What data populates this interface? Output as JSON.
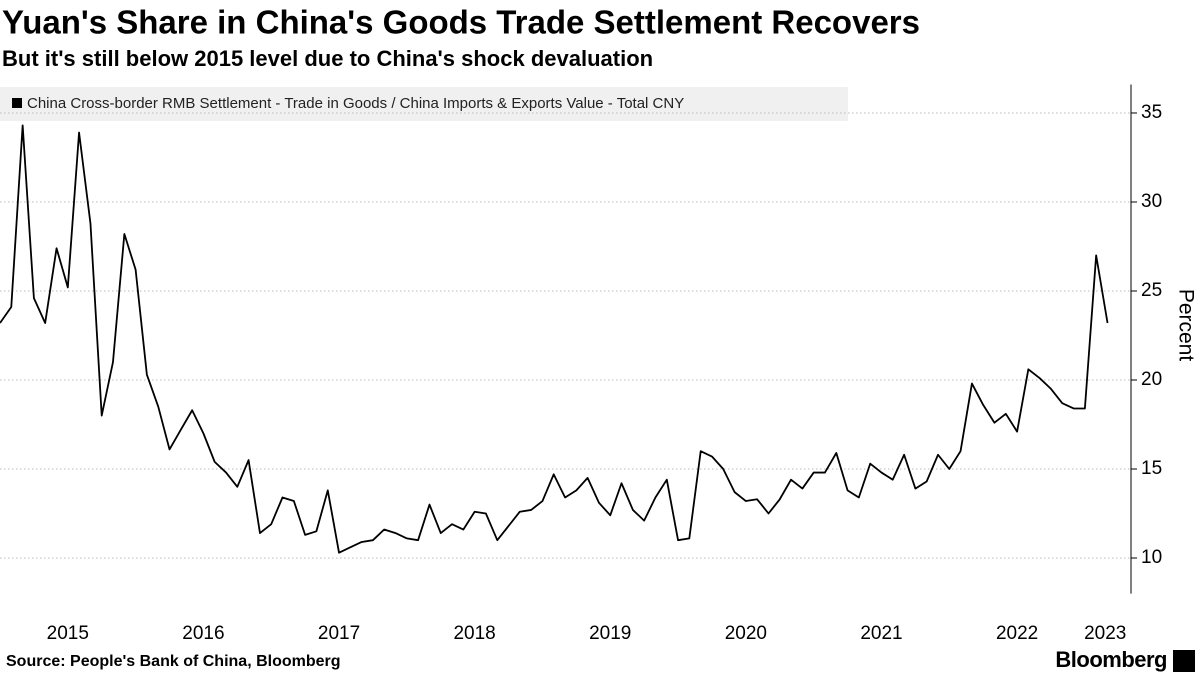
{
  "chart_data": {
    "type": "line",
    "title": "Yuan's Share in China's Goods Trade Settlement Recovers",
    "subtitle": "But it's still below 2015 level due to China's shock devaluation",
    "y_label": "Percent",
    "source": "Source: People's Bank of China, Bloomberg",
    "brand": "Bloomberg",
    "x": [
      2015,
      2015.083,
      2015.167,
      2015.25,
      2015.333,
      2015.417,
      2015.5,
      2015.583,
      2015.667,
      2015.75,
      2015.833,
      2015.917,
      2016,
      2016.083,
      2016.167,
      2016.25,
      2016.333,
      2016.417,
      2016.5,
      2016.583,
      2016.667,
      2016.75,
      2016.833,
      2016.917,
      2017,
      2017.083,
      2017.167,
      2017.25,
      2017.333,
      2017.417,
      2017.5,
      2017.583,
      2017.667,
      2017.75,
      2017.833,
      2017.917,
      2018,
      2018.083,
      2018.167,
      2018.25,
      2018.333,
      2018.417,
      2018.5,
      2018.583,
      2018.667,
      2018.75,
      2018.833,
      2018.917,
      2019,
      2019.083,
      2019.167,
      2019.25,
      2019.333,
      2019.417,
      2019.5,
      2019.583,
      2019.667,
      2019.75,
      2019.833,
      2019.917,
      2020,
      2020.083,
      2020.167,
      2020.25,
      2020.333,
      2020.417,
      2020.5,
      2020.583,
      2020.667,
      2020.75,
      2020.833,
      2020.917,
      2021,
      2021.083,
      2021.167,
      2021.25,
      2021.333,
      2021.417,
      2021.5,
      2021.583,
      2021.667,
      2021.75,
      2021.833,
      2021.917,
      2022,
      2022.083,
      2022.167,
      2022.25,
      2022.333,
      2022.417,
      2022.5,
      2022.583,
      2022.667,
      2022.75,
      2022.833,
      2022.917,
      2023,
      2023.083,
      2023.167
    ],
    "series": [
      {
        "name": "China Cross-border RMB Settlement - Trade in Goods / China Imports & Exports Value - Total CNY",
        "color": "#000000",
        "values": [
          23.2,
          24.1,
          34.3,
          24.6,
          23.2,
          27.4,
          25.2,
          33.9,
          28.8,
          18.0,
          21.0,
          28.2,
          26.2,
          20.3,
          18.5,
          16.1,
          17.2,
          18.3,
          17.0,
          15.4,
          14.8,
          14.0,
          15.5,
          11.4,
          11.9,
          13.4,
          13.2,
          11.3,
          11.5,
          13.8,
          10.3,
          10.6,
          10.9,
          11.0,
          11.6,
          11.4,
          11.1,
          11.0,
          13.0,
          11.4,
          11.9,
          11.6,
          12.6,
          12.5,
          11.0,
          11.8,
          12.6,
          12.7,
          13.2,
          14.7,
          13.4,
          13.8,
          14.5,
          13.1,
          12.4,
          14.2,
          12.7,
          12.1,
          13.4,
          14.4,
          11.0,
          11.1,
          16.0,
          15.7,
          15.0,
          13.7,
          13.2,
          13.3,
          12.5,
          13.3,
          14.4,
          13.9,
          14.8,
          14.8,
          15.9,
          13.8,
          13.4,
          15.3,
          14.8,
          14.4,
          15.8,
          13.9,
          14.3,
          15.8,
          15.0,
          16.0,
          19.8,
          18.6,
          17.6,
          18.1,
          17.1,
          20.6,
          20.1,
          19.5,
          18.7,
          18.4,
          18.4,
          27.0,
          23.2
        ]
      }
    ],
    "xlim": [
      2015,
      2023.34
    ],
    "xticks": [
      {
        "value": 2015.5,
        "label": "2015"
      },
      {
        "value": 2016.5,
        "label": "2016"
      },
      {
        "value": 2017.5,
        "label": "2017"
      },
      {
        "value": 2018.5,
        "label": "2018"
      },
      {
        "value": 2019.5,
        "label": "2019"
      },
      {
        "value": 2020.5,
        "label": "2020"
      },
      {
        "value": 2021.5,
        "label": "2021"
      },
      {
        "value": 2022.5,
        "label": "2022"
      },
      {
        "value": 2023.15,
        "label": "2023"
      }
    ],
    "ylim": [
      8,
      36.6
    ],
    "yticks": [
      10,
      15,
      20,
      25,
      30,
      35
    ],
    "grid": true
  }
}
